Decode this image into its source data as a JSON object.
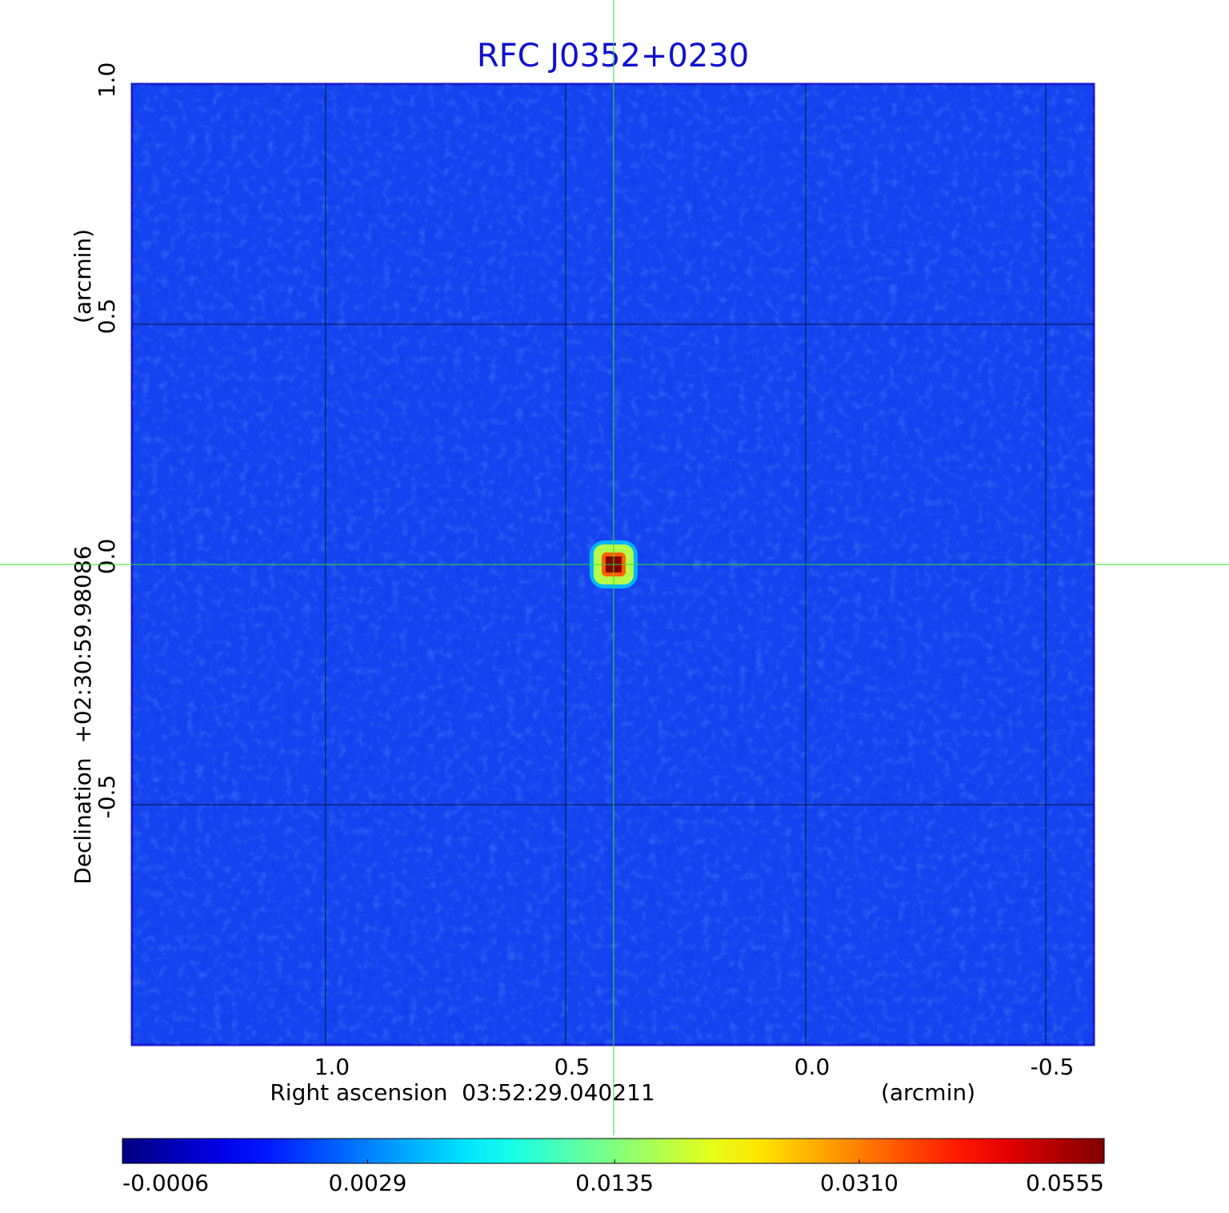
{
  "chart_data": {
    "type": "image",
    "title": "RFC J0352+0230",
    "xlabel": "Right ascension  03:52:29.040211",
    "xunit": "(arcmin)",
    "ylabel": "Declination  +02:30:59.98086",
    "yunit": "(arcmin)",
    "xlim": [
      1.403,
      -0.6
    ],
    "ylim": [
      -1.0,
      1.0
    ],
    "xticks": [
      {
        "value": 1,
        "label": "1.0"
      },
      0.5,
      {
        "value": 0,
        "label": "0.0"
      },
      -0.5
    ],
    "yticks": [
      -0.5,
      {
        "value": 0,
        "label": "0.0"
      },
      0.5,
      {
        "value": 1,
        "label": "1.0"
      }
    ],
    "grid": true,
    "source": {
      "x": 0.4,
      "y": 0,
      "peak": 0.055
    },
    "crosshair": {
      "x": 0.4,
      "y": 0,
      "color": "#33dd33"
    },
    "colorbar": {
      "colormap": "jet",
      "scale": "sqrt",
      "clim": [
        -0.0006,
        0.0555
      ],
      "ticks": [
        -0.0006,
        0.0029,
        0.0135,
        {
          "value": 0.031,
          "label": "0.0310"
        },
        0.0555
      ]
    }
  }
}
